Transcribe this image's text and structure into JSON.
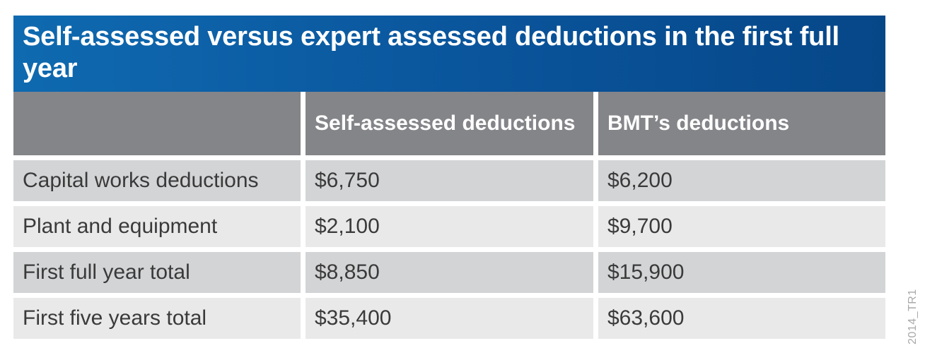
{
  "chart_data": {
    "type": "table",
    "title": "Self-assessed versus expert assessed deductions in the first full year",
    "columns": [
      "",
      "Self-assessed deductions",
      "BMT’s deductions"
    ],
    "rows": [
      {
        "label": "Capital works deductions",
        "self_assessed": "$6,750",
        "bmt": "$6,200"
      },
      {
        "label": "Plant and equipment",
        "self_assessed": "$2,100",
        "bmt": "$9,700"
      },
      {
        "label": "First full year total",
        "self_assessed": "$8,850",
        "bmt": "$15,900"
      },
      {
        "label": "First five years total",
        "self_assessed": "$35,400",
        "bmt": "$63,600"
      }
    ],
    "values": {
      "self_assessed": [
        6750,
        2100,
        8850,
        35400
      ],
      "bmt": [
        6200,
        9700,
        15900,
        63600
      ]
    },
    "unit": "$"
  },
  "watermark": "2014_TR1",
  "colors": {
    "title_bar": "#0a549b",
    "header_bg": "#848589",
    "row_dark": "#d3d4d6",
    "row_light": "#e9e9ea",
    "text": "#3a3a3a"
  }
}
